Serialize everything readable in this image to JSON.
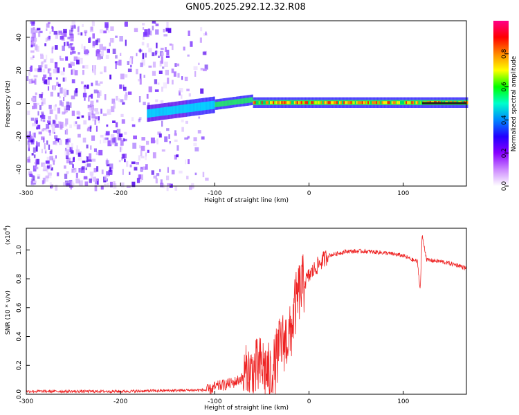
{
  "title": "GN05.2025.292.12.32.R08",
  "top_panel": {
    "ylabel": "Frequency (Hz)",
    "xlabel": "Height of straight line (km)"
  },
  "bottom_panel": {
    "ylabel": "SNR (10 * v/v)",
    "xlabel": "Height of straight line (km)",
    "scale_note": "(x10",
    "scale_exp": "4",
    "scale_close": ")"
  },
  "colorbar": {
    "label": "Normalized spectral amplitude",
    "colors": [
      "#ffffff",
      "#cc88ff",
      "#8800ff",
      "#2200ff",
      "#0088ff",
      "#00ffcc",
      "#00ff00",
      "#ffff00",
      "#ff8800",
      "#ff0000",
      "#ff0088"
    ]
  },
  "chart_data": [
    {
      "type": "heatmap",
      "title": "GN05.2025.292.12.32.R08",
      "xlabel": "Height of straight line (km)",
      "ylabel": "Frequency (Hz)",
      "xlim": [
        -300,
        167
      ],
      "ylim": [
        -50,
        50
      ],
      "xticks": [
        -300,
        -200,
        -100,
        0,
        100
      ],
      "yticks": [
        -40,
        -20,
        0,
        20,
        40
      ],
      "colorbar_ticks": [
        0.0,
        0.2,
        0.4,
        0.6,
        0.8
      ],
      "colorbar_range": [
        0,
        1
      ],
      "description_values": {
        "noise_region_km": [
          -300,
          -110
        ],
        "signal_start_km": -170,
        "signal_center_freq_hz": 0
      }
    },
    {
      "type": "line",
      "xlabel": "Height of straight line (km)",
      "ylabel": "SNR (10 * v/v)",
      "scale": "x10^4",
      "xlim": [
        -300,
        167
      ],
      "ylim": [
        0,
        1.15
      ],
      "xticks": [
        -300,
        -200,
        -100,
        0,
        100
      ],
      "yticks": [
        0.0,
        0.2,
        0.4,
        0.6,
        0.8,
        1.0
      ],
      "series": [
        {
          "name": "SNR",
          "color": "#ee2222",
          "x": [
            -300,
            -200,
            -105,
            -100,
            -80,
            -60,
            -50,
            -40,
            -30,
            -20,
            -15,
            -10,
            0,
            10,
            20,
            40,
            60,
            80,
            100,
            110,
            115,
            118,
            120,
            125,
            140,
            160,
            167
          ],
          "y": [
            0.02,
            0.02,
            0.03,
            0.05,
            0.08,
            0.15,
            0.2,
            0.12,
            0.35,
            0.4,
            0.6,
            0.72,
            0.82,
            0.9,
            0.96,
            0.99,
            0.99,
            0.98,
            0.96,
            0.93,
            0.92,
            0.72,
            1.1,
            0.93,
            0.92,
            0.89,
            0.87
          ]
        }
      ]
    }
  ]
}
